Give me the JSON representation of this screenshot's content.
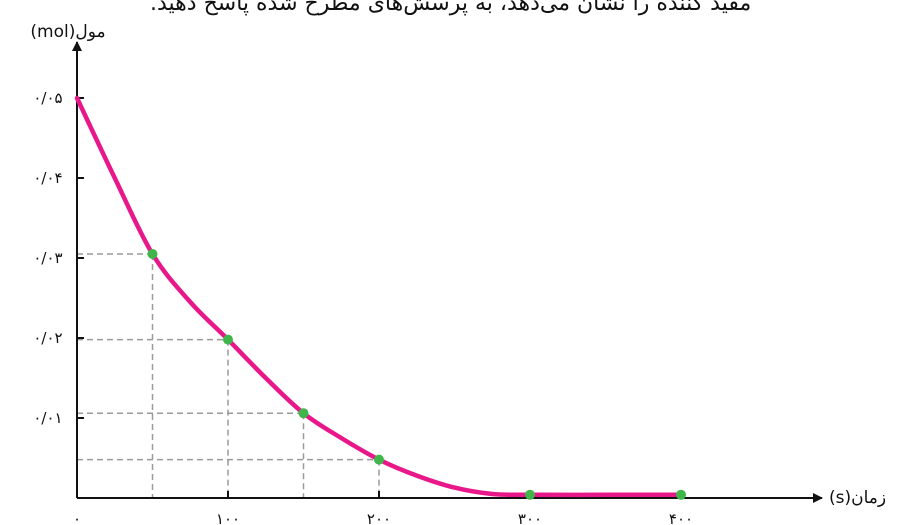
{
  "header": {
    "text": "مفید کننده را نشان می‌دهد، به پرسش‌های مطرح شده پاسخ دهید."
  },
  "chart_data": {
    "type": "line",
    "title": "",
    "xlabel": "زمان(s)",
    "ylabel": "مول(mol)",
    "xlim": [
      0,
      500
    ],
    "ylim": [
      0,
      0.05
    ],
    "x_ticks": [
      0,
      100,
      200,
      300,
      400
    ],
    "x_tick_labels": [
      "۰",
      "۱۰۰",
      "۲۰۰",
      "۳۰۰",
      "۴۰۰"
    ],
    "y_ticks": [
      0.01,
      0.02,
      0.03,
      0.04,
      0.05
    ],
    "y_tick_labels": [
      "۰/۰۱",
      "۰/۰۲",
      "۰/۰۳",
      "۰/۰۴",
      "۰/۰۵"
    ],
    "series": [
      {
        "color": "#e8178a",
        "x": [
          0,
          25,
          50,
          75,
          100,
          125,
          150,
          175,
          200,
          225,
          250,
          275,
          300,
          350,
          400
        ],
        "y": [
          0.05,
          0.04,
          0.0305,
          0.0245,
          0.0198,
          0.015,
          0.0106,
          0.0075,
          0.0048,
          0.0028,
          0.0013,
          0.0005,
          0.0004,
          0.0004,
          0.0004
        ]
      }
    ],
    "points": {
      "color": "#3fb54a",
      "x": [
        50,
        100,
        150,
        200,
        300,
        400
      ],
      "y": [
        0.0305,
        0.0198,
        0.0106,
        0.0048,
        0.0004,
        0.0004
      ]
    },
    "guide_color": "#9a9a9a"
  }
}
